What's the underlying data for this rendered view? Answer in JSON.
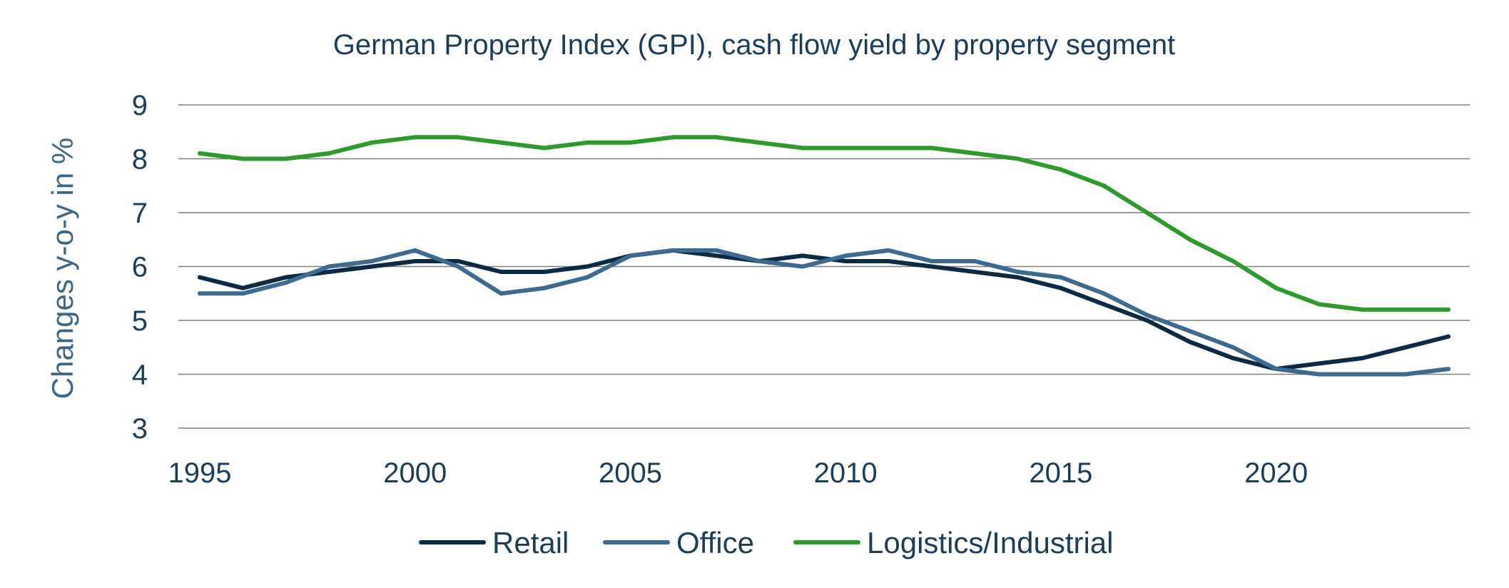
{
  "chart_data": {
    "type": "line",
    "title": "German Property Index (GPI), cash flow yield by property segment",
    "xlabel": "",
    "ylabel": "Changes y-o-y in %",
    "x": [
      1995,
      1996,
      1997,
      1998,
      1999,
      2000,
      2001,
      2002,
      2003,
      2004,
      2005,
      2006,
      2007,
      2008,
      2009,
      2010,
      2011,
      2012,
      2013,
      2014,
      2015,
      2016,
      2017,
      2018,
      2019,
      2020,
      2021,
      2022,
      2023,
      2024
    ],
    "xticks": [
      "1995",
      "2000",
      "2005",
      "2010",
      "2015",
      "2020"
    ],
    "xlim": [
      1995,
      2024
    ],
    "yticks": [
      "3",
      "4",
      "5",
      "6",
      "7",
      "8",
      "9"
    ],
    "ylim": [
      3,
      9
    ],
    "grid": "horizontal",
    "legend_position": "bottom",
    "series": [
      {
        "name": "Retail",
        "color": "#0d2a45",
        "values": [
          5.8,
          5.6,
          5.8,
          5.9,
          6.0,
          6.1,
          6.1,
          5.9,
          5.9,
          6.0,
          6.2,
          6.3,
          6.2,
          6.1,
          6.2,
          6.1,
          6.1,
          6.0,
          5.9,
          5.8,
          5.6,
          5.3,
          5.0,
          4.6,
          4.3,
          4.1,
          4.2,
          4.3,
          4.5,
          4.7
        ]
      },
      {
        "name": "Office",
        "color": "#3d6a8e",
        "values": [
          5.5,
          5.5,
          5.7,
          6.0,
          6.1,
          6.3,
          6.0,
          5.5,
          5.6,
          5.8,
          6.2,
          6.3,
          6.3,
          6.1,
          6.0,
          6.2,
          6.3,
          6.1,
          6.1,
          5.9,
          5.8,
          5.5,
          5.1,
          4.8,
          4.5,
          4.1,
          4.0,
          4.0,
          4.0,
          4.1
        ]
      },
      {
        "name": "Logistics/Industrial",
        "color": "#2e9a2e",
        "values": [
          8.1,
          8.0,
          8.0,
          8.1,
          8.3,
          8.4,
          8.4,
          8.3,
          8.2,
          8.3,
          8.3,
          8.4,
          8.4,
          8.3,
          8.2,
          8.2,
          8.2,
          8.2,
          8.1,
          8.0,
          7.8,
          7.5,
          7.0,
          6.5,
          6.1,
          5.6,
          5.3,
          5.2,
          5.2,
          5.2
        ]
      }
    ]
  }
}
